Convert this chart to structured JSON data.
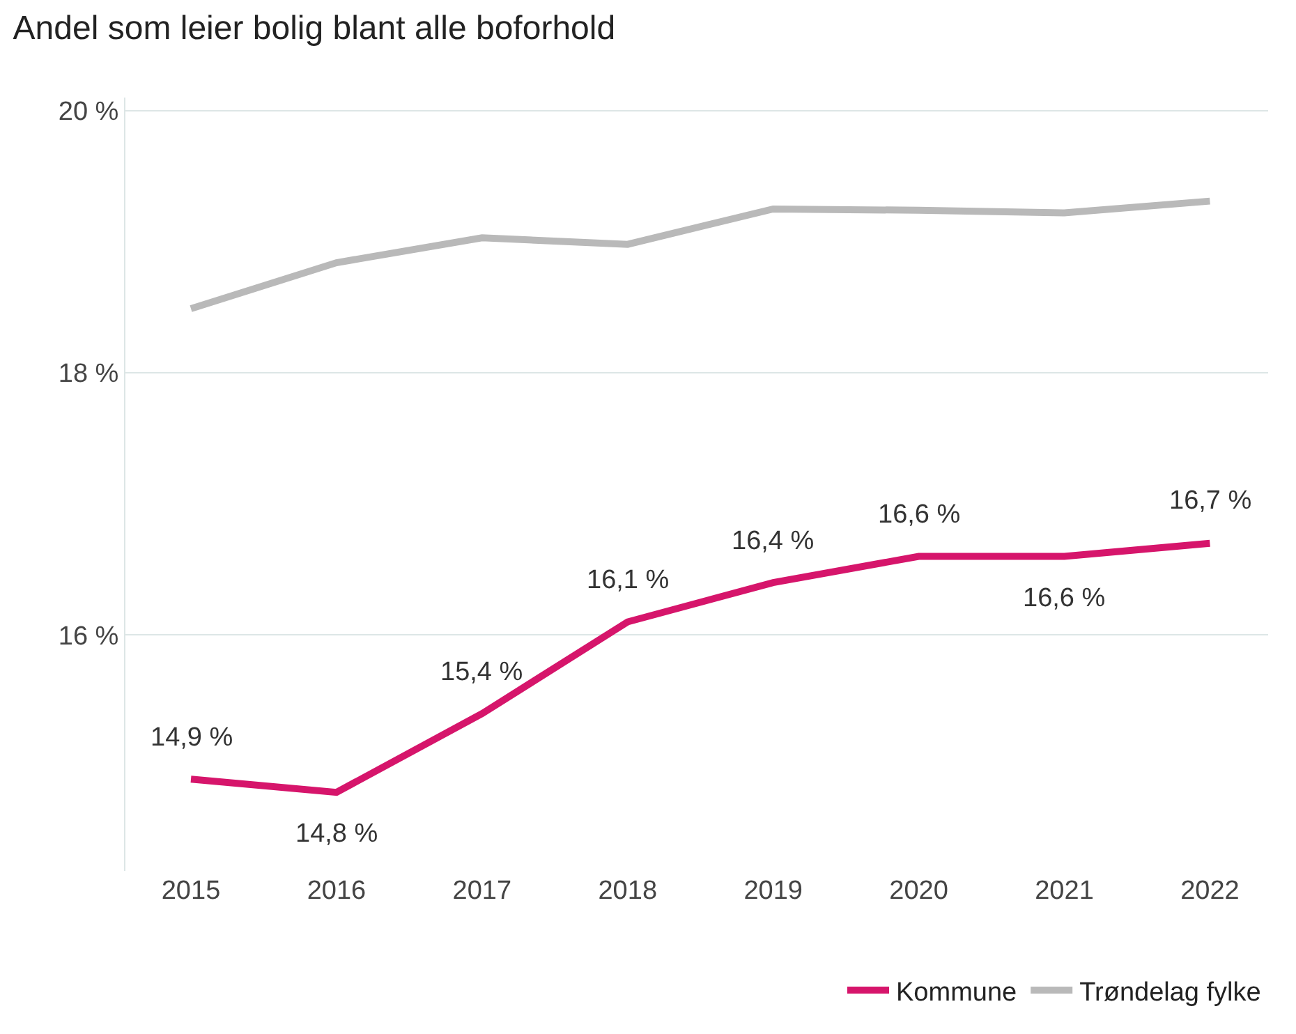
{
  "chart_data": {
    "type": "line",
    "title": "Andel som leier bolig blant alle boforhold",
    "categories": [
      "2015",
      "2016",
      "2017",
      "2018",
      "2019",
      "2020",
      "2021",
      "2022"
    ],
    "series": [
      {
        "name": "Kommune",
        "color": "#d6156b",
        "values": [
          14.9,
          14.8,
          15.4,
          16.1,
          16.4,
          16.6,
          16.6,
          16.7
        ],
        "value_labels": [
          "14,9 %",
          "14,8 %",
          "15,4 %",
          "16,1 %",
          "16,4 %",
          "16,6 %",
          "16,6 %",
          "16,7 %"
        ]
      },
      {
        "name": "Trøndelag fylke",
        "color": "#b9b9b9",
        "values": [
          18.49,
          18.84,
          19.03,
          18.98,
          19.25,
          19.24,
          19.22,
          19.31
        ]
      }
    ],
    "yticks": [
      {
        "value": 16,
        "label": "16 %"
      },
      {
        "value": 18,
        "label": "18 %"
      },
      {
        "value": 20,
        "label": "20 %"
      }
    ],
    "ylim": [
      14.2,
      20.1
    ],
    "grid": "y",
    "legend": "bottom right",
    "marker": "none",
    "line_style": "solid"
  }
}
